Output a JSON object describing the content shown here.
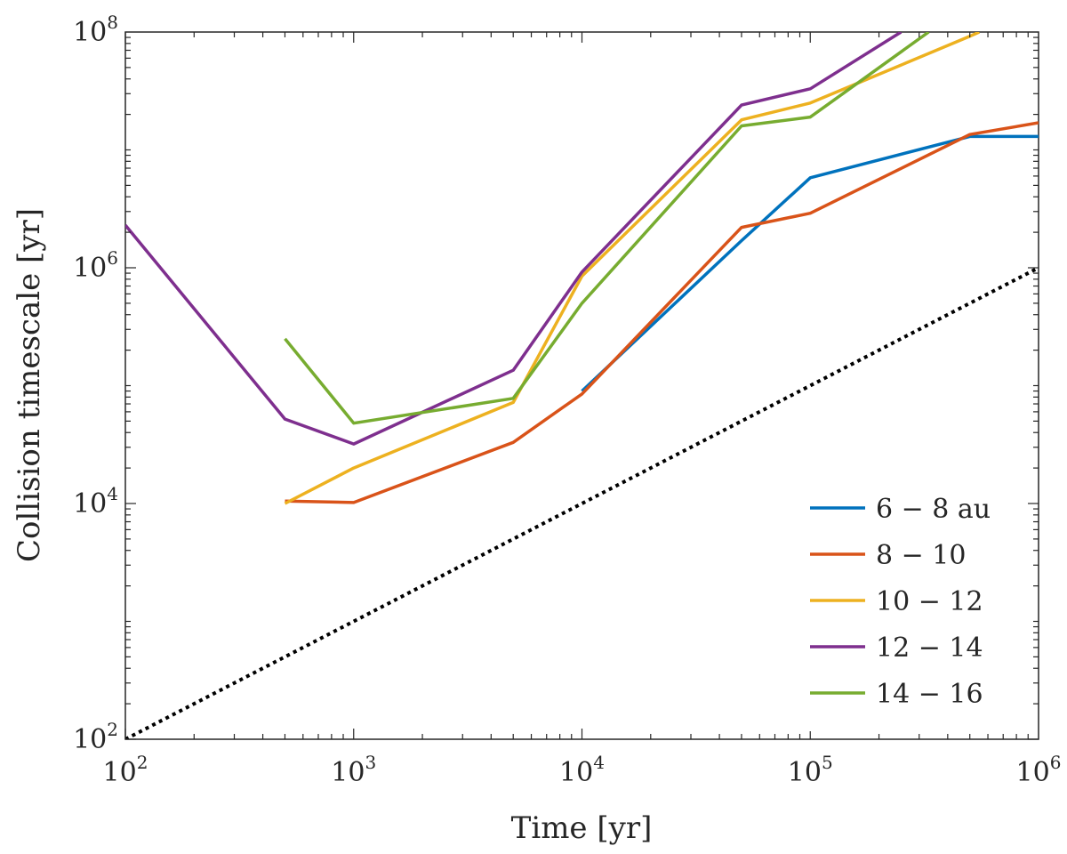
{
  "chart_data": {
    "type": "line",
    "xlabel": "Time [yr]",
    "ylabel": "Collision timescale [yr]",
    "xscale": "log",
    "yscale": "log",
    "xlim": [
      100,
      1000000
    ],
    "ylim": [
      100,
      100000000
    ],
    "x_ticks": [
      {
        "base": "10",
        "exp": "2",
        "value": 100
      },
      {
        "base": "10",
        "exp": "3",
        "value": 1000
      },
      {
        "base": "10",
        "exp": "4",
        "value": 10000
      },
      {
        "base": "10",
        "exp": "5",
        "value": 100000
      },
      {
        "base": "10",
        "exp": "6",
        "value": 1000000
      }
    ],
    "y_ticks": [
      {
        "base": "10",
        "exp": "2",
        "value": 100
      },
      {
        "base": "10",
        "exp": "4",
        "value": 10000
      },
      {
        "base": "10",
        "exp": "6",
        "value": 1000000
      },
      {
        "base": "10",
        "exp": "8",
        "value": 100000000
      }
    ],
    "grid": false,
    "legend_position": "bottom-right",
    "series": [
      {
        "name": "6 − 8 au",
        "color": "#0072BD",
        "points": [
          [
            10000,
            90000
          ],
          [
            50000,
            1700000
          ],
          [
            100000,
            5800000
          ],
          [
            500000,
            13000000
          ],
          [
            1000000,
            13000000
          ]
        ]
      },
      {
        "name": "8 − 10",
        "color": "#D95319",
        "points": [
          [
            500,
            10500
          ],
          [
            1000,
            10200
          ],
          [
            5000,
            33000
          ],
          [
            10000,
            85000
          ],
          [
            50000,
            2200000
          ],
          [
            100000,
            2900000
          ],
          [
            500000,
            13500000
          ],
          [
            1000000,
            17000000
          ]
        ]
      },
      {
        "name": "10 − 12",
        "color": "#EDB120",
        "points": [
          [
            500,
            10000
          ],
          [
            1000,
            20000
          ],
          [
            5000,
            72000
          ],
          [
            10000,
            850000
          ],
          [
            50000,
            18000000
          ],
          [
            100000,
            25000000
          ],
          [
            500000,
            92000000
          ],
          [
            550000,
            100000000
          ]
        ]
      },
      {
        "name": "12 − 14",
        "color": "#7E2F8E",
        "points": [
          [
            100,
            2300000
          ],
          [
            500,
            52000
          ],
          [
            1000,
            32000
          ],
          [
            5000,
            135000
          ],
          [
            10000,
            920000
          ],
          [
            50000,
            24000000
          ],
          [
            100000,
            33000000
          ],
          [
            250000,
            100000000
          ]
        ]
      },
      {
        "name": "14 − 16",
        "color": "#77AC30",
        "points": [
          [
            500,
            250000
          ],
          [
            1000,
            48000
          ],
          [
            5000,
            78000
          ],
          [
            10000,
            500000
          ],
          [
            50000,
            16000000
          ],
          [
            100000,
            19000000
          ],
          [
            330000,
            100000000
          ]
        ]
      },
      {
        "name": "",
        "color": "#000000",
        "dotted": true,
        "points": [
          [
            100,
            100
          ],
          [
            1000000,
            1000000
          ]
        ]
      }
    ]
  }
}
